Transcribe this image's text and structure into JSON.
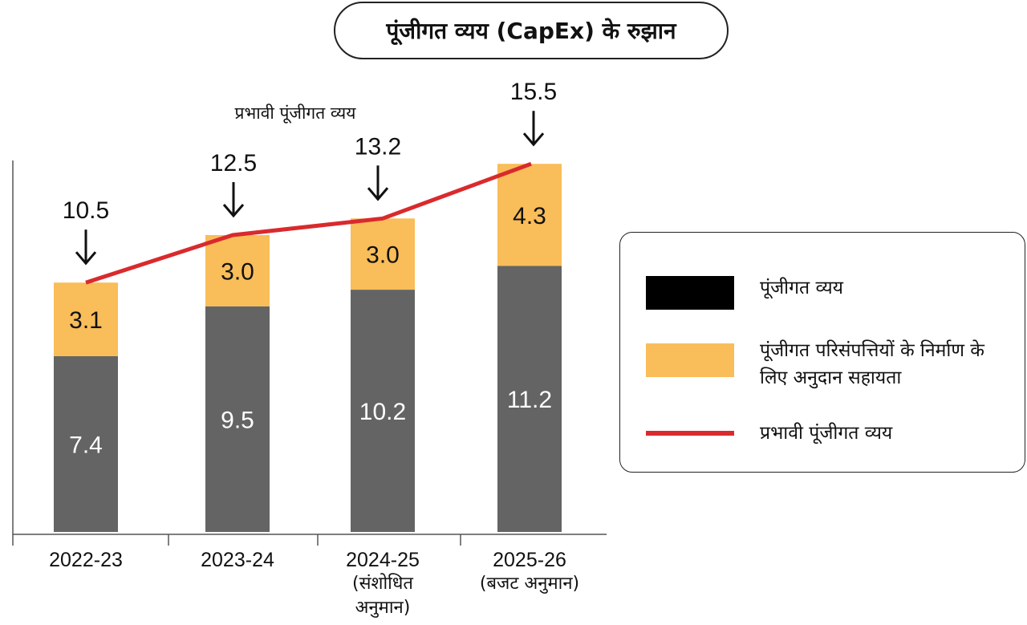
{
  "title": "पूंजीगत व्यय (CapEx)  के रुझान",
  "chart_data": {
    "type": "bar",
    "stacked": true,
    "categories": [
      "2022-23",
      "2023-24",
      "2024-25",
      "2025-26"
    ],
    "category_notes": [
      "",
      "",
      "(संशोधित अनुमान)",
      "(बजट अनुमान)"
    ],
    "series": [
      {
        "name": "पूंजीगत व्यय",
        "type": "bar",
        "color": "#636463",
        "values": [
          7.4,
          9.5,
          10.2,
          11.2
        ]
      },
      {
        "name": "पूंजीगत परिसंपत्तियों के निर्माण के लिए अनुदान सहायता",
        "type": "bar",
        "color": "#f9bd59",
        "values": [
          3.1,
          3.0,
          3.0,
          4.3
        ]
      },
      {
        "name": "प्रभावी पूंजीगत व्यय",
        "type": "line",
        "color": "#d92a2d",
        "values": [
          10.5,
          12.5,
          13.2,
          15.5
        ]
      }
    ],
    "line_annotation": "प्रभावी पूंजीगत व्यय",
    "ylim": [
      0,
      18
    ],
    "grid": false,
    "legend_position": "right"
  },
  "legend": {
    "items": [
      {
        "label": "पूंजीगत व्यय",
        "color": "#000000"
      },
      {
        "label": "पूंजीगत परिसंपत्तियों के निर्माण के लिए अनुदान सहायता",
        "color": "#f9bd59"
      },
      {
        "label": "प्रभावी पूंजीगत व्यय",
        "color": "#d92a2d"
      }
    ]
  }
}
